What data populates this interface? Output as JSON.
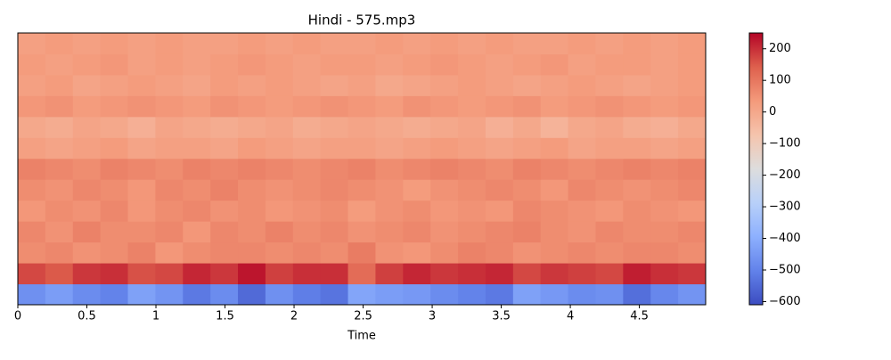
{
  "chart_data": {
    "type": "heatmap",
    "title": "Hindi - 575.mp3",
    "x_label": "Time",
    "colormap": "coolwarm",
    "xlim": [
      0,
      4.98
    ],
    "xticks": [
      0,
      0.5,
      1,
      1.5,
      2,
      2.5,
      3,
      3.5,
      4,
      4.5
    ],
    "zlim": [
      -610,
      250
    ],
    "zticks": [
      {
        "value": -600,
        "label": "−600"
      },
      {
        "value": -500,
        "label": "−500"
      },
      {
        "value": -400,
        "label": "−400"
      },
      {
        "value": -300,
        "label": "−300"
      },
      {
        "value": -200,
        "label": "−200"
      },
      {
        "value": -100,
        "label": "−100"
      },
      0,
      100,
      200
    ],
    "z": [
      [
        -470,
        -440,
        -480,
        -500,
        -430,
        -460,
        -520,
        -480,
        -550,
        -470,
        -510,
        -530,
        -420,
        -440,
        -450,
        -480,
        -500,
        -520,
        -430,
        -450,
        -480,
        -470,
        -540,
        -490,
        -460
      ],
      [
        170,
        150,
        190,
        200,
        160,
        170,
        210,
        190,
        230,
        180,
        200,
        200,
        120,
        180,
        210,
        190,
        200,
        210,
        170,
        190,
        180,
        170,
        220,
        200,
        190
      ],
      [
        60,
        70,
        50,
        60,
        80,
        40,
        60,
        70,
        70,
        60,
        70,
        60,
        90,
        50,
        40,
        60,
        80,
        70,
        50,
        60,
        70,
        60,
        70,
        70,
        60
      ],
      [
        70,
        50,
        80,
        60,
        60,
        70,
        40,
        70,
        60,
        80,
        60,
        70,
        50,
        60,
        70,
        50,
        60,
        70,
        80,
        60,
        50,
        70,
        60,
        60,
        70
      ],
      [
        40,
        60,
        50,
        70,
        40,
        60,
        70,
        50,
        60,
        40,
        50,
        60,
        30,
        50,
        60,
        40,
        50,
        40,
        70,
        60,
        50,
        40,
        60,
        50,
        40
      ],
      [
        60,
        50,
        70,
        60,
        40,
        70,
        60,
        80,
        60,
        50,
        60,
        70,
        60,
        50,
        30,
        50,
        60,
        70,
        60,
        40,
        70,
        60,
        50,
        60,
        70
      ],
      [
        80,
        70,
        60,
        80,
        70,
        60,
        80,
        70,
        80,
        70,
        60,
        70,
        80,
        60,
        70,
        80,
        70,
        60,
        80,
        70,
        60,
        70,
        80,
        70,
        80
      ],
      [
        20,
        10,
        20,
        30,
        10,
        20,
        20,
        10,
        30,
        20,
        10,
        20,
        20,
        10,
        20,
        30,
        20,
        10,
        20,
        30,
        10,
        20,
        20,
        10,
        20
      ],
      [
        0,
        -10,
        10,
        0,
        -20,
        10,
        0,
        -10,
        0,
        10,
        -10,
        0,
        10,
        0,
        -10,
        0,
        10,
        -20,
        0,
        -30,
        0,
        10,
        -10,
        -20,
        0
      ],
      [
        40,
        50,
        30,
        40,
        50,
        40,
        30,
        50,
        40,
        30,
        40,
        50,
        40,
        30,
        50,
        40,
        30,
        40,
        50,
        30,
        40,
        50,
        40,
        30,
        40
      ],
      [
        20,
        30,
        10,
        20,
        30,
        20,
        10,
        30,
        20,
        30,
        20,
        10,
        20,
        0,
        10,
        20,
        30,
        20,
        10,
        20,
        30,
        20,
        10,
        20,
        30
      ],
      [
        30,
        20,
        30,
        40,
        20,
        30,
        20,
        30,
        40,
        30,
        20,
        30,
        30,
        20,
        30,
        40,
        30,
        20,
        30,
        40,
        20,
        30,
        30,
        20,
        30
      ],
      [
        20,
        30,
        20,
        30,
        20,
        30,
        20,
        20,
        30,
        20,
        30,
        20,
        20,
        30,
        20,
        30,
        20,
        30,
        20,
        20,
        30,
        20,
        30,
        20,
        30
      ]
    ]
  }
}
